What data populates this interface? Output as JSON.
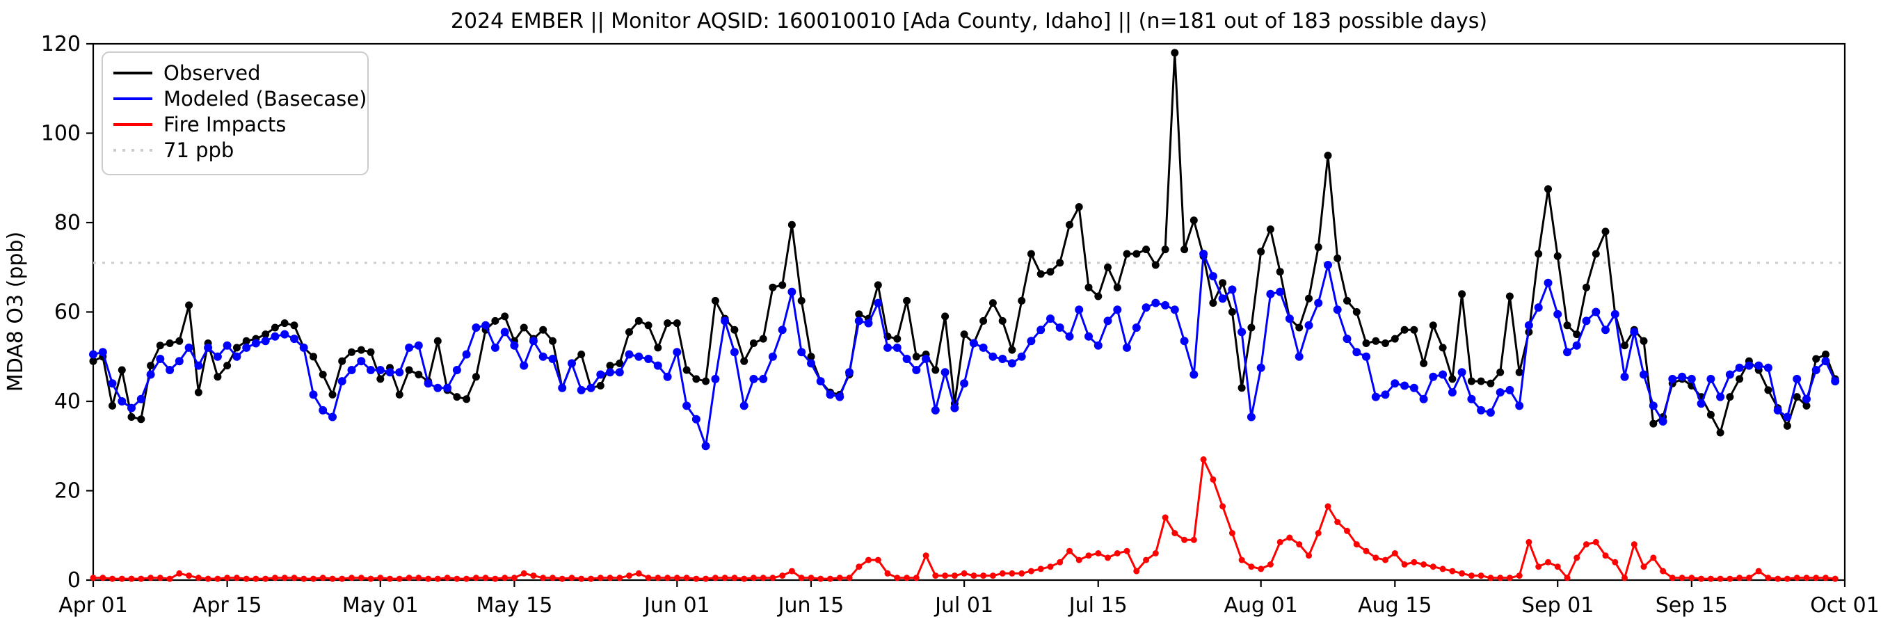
{
  "window": {
    "background": "#ffffff"
  },
  "chart_data": {
    "type": "line",
    "title": "2024 EMBER || Monitor AQSID: 160010010 [Ada County, Idaho] || (n=181 out of 183 possible days)",
    "xlabel": "",
    "ylabel": "MDA8 O3 (ppb)",
    "ylim": [
      0,
      120
    ],
    "y_ticks": [
      0,
      20,
      40,
      60,
      80,
      100,
      120
    ],
    "x": "daily values, 2024-04-01 through 2024-09-30 (183 days)",
    "x_tick_labels": [
      "Apr 01",
      "Apr 15",
      "May 01",
      "May 15",
      "Jun 01",
      "Jun 15",
      "Jul 01",
      "Jul 15",
      "Aug 01",
      "Aug 15",
      "Sep 01",
      "Sep 15",
      "Oct 01"
    ],
    "x_tick_day_index": [
      0,
      14,
      30,
      44,
      61,
      75,
      91,
      105,
      122,
      136,
      153,
      167,
      183
    ],
    "grid": false,
    "legend_position": "upper left",
    "threshold": {
      "label": "71 ppb",
      "value": 71,
      "color": "#cccccc",
      "style": "dotted"
    },
    "series": [
      {
        "name": "Observed",
        "color": "#000000",
        "values": [
          49,
          50,
          39,
          47,
          36.5,
          36,
          48,
          52.5,
          53,
          53.5,
          61.5,
          42,
          53,
          45.5,
          48,
          52,
          53.5,
          54,
          55,
          56.5,
          57.5,
          57,
          52,
          50,
          46,
          41.5,
          49,
          51,
          51.5,
          51,
          45,
          47.5,
          41.5,
          47,
          46,
          44.5,
          53.5,
          42.5,
          41,
          40.5,
          45.5,
          56,
          58,
          59,
          53.5,
          56.5,
          54,
          56,
          53.5,
          43,
          48.5,
          50.5,
          43,
          43.5,
          48,
          48.5,
          55.5,
          58,
          57,
          52,
          57.5,
          57.5,
          47,
          45,
          44.5,
          62.5,
          58.5,
          56,
          49,
          53,
          54,
          65.5,
          66,
          79.5,
          62.5,
          50,
          44.5,
          42,
          41.5,
          46,
          59.5,
          58.5,
          66,
          54.5,
          54,
          62.5,
          50,
          50.5,
          47,
          59,
          39.5,
          55,
          53,
          58,
          62,
          58,
          51.5,
          62.5,
          73,
          68.5,
          69,
          71,
          79.5,
          83.5,
          65.5,
          63.5,
          70,
          65.5,
          73,
          73,
          74,
          70.5,
          74,
          118,
          74,
          80.5,
          72.5,
          62,
          66.5,
          60,
          43,
          56.5,
          73.5,
          78.5,
          69,
          58.5,
          56.5,
          63,
          74.5,
          95,
          72,
          62.5,
          60,
          53,
          53.5,
          53,
          54,
          56,
          56,
          48.5,
          57,
          52,
          45,
          64,
          44.5,
          44.5,
          44,
          46.5,
          63.5,
          46.5,
          55.5,
          73,
          87.5,
          72.5,
          57,
          55,
          65.5,
          73,
          78,
          59.5,
          52.5,
          56,
          53.5,
          35,
          36.5,
          44,
          45,
          43.5,
          41,
          37,
          33,
          41,
          45,
          49,
          47,
          42.5,
          38.5,
          34.5,
          41,
          39,
          49.5,
          50.5,
          45
        ]
      },
      {
        "name": "Modeled (Basecase)",
        "color": "#0000ff",
        "values": [
          50.5,
          51,
          44,
          40,
          38.5,
          40.5,
          46,
          49.5,
          47,
          49,
          52,
          48,
          52,
          50,
          52.5,
          50,
          52,
          53,
          53.5,
          54.5,
          55,
          54,
          52,
          41.5,
          38,
          36.5,
          44.5,
          47,
          49,
          47,
          47,
          46.5,
          46.5,
          52,
          52.5,
          44,
          43,
          43,
          47,
          50.5,
          56.5,
          57,
          52,
          55.5,
          52.5,
          48,
          53.5,
          50,
          49.5,
          43,
          48.5,
          42.5,
          43,
          46,
          46.5,
          46.5,
          50.5,
          50,
          49.5,
          48,
          45.5,
          51,
          39,
          36,
          30,
          45,
          58,
          51,
          39,
          45,
          45,
          50,
          56,
          64.5,
          51,
          48.5,
          44.5,
          41.5,
          41,
          46.5,
          58,
          57.5,
          62,
          52,
          52,
          49.5,
          47,
          49.5,
          38,
          46.5,
          38.5,
          44,
          53,
          52,
          50,
          49.5,
          48.5,
          50,
          53.5,
          56,
          58.5,
          56.5,
          54.5,
          60.5,
          54.5,
          52.5,
          58,
          60.5,
          52,
          56.5,
          61,
          62,
          61.5,
          60.5,
          53.5,
          46,
          73,
          68,
          63,
          65,
          55.5,
          36.5,
          47.5,
          64,
          64.5,
          58.5,
          50,
          57,
          62,
          70.5,
          60.5,
          54,
          51,
          50,
          41,
          41.5,
          44,
          43.5,
          43,
          40.5,
          45.5,
          46,
          42,
          46.5,
          40.5,
          38,
          37.5,
          42,
          42.5,
          39,
          57,
          61,
          66.5,
          59.5,
          51,
          52.5,
          58,
          60,
          56,
          59.5,
          45.5,
          55.5,
          46,
          39,
          35.5,
          45,
          45.5,
          45,
          39.5,
          45,
          41,
          46,
          47.5,
          48,
          48,
          47.5,
          38,
          36.5,
          45,
          40.5,
          47,
          49,
          44.5
        ]
      },
      {
        "name": "Fire Impacts",
        "color": "#ff0000",
        "values": [
          0.5,
          0.5,
          0.3,
          0.3,
          0.3,
          0.3,
          0.5,
          0.5,
          0.3,
          1.5,
          1,
          0.5,
          0.3,
          0.3,
          0.5,
          0.5,
          0.3,
          0.3,
          0.3,
          0.5,
          0.5,
          0.5,
          0.3,
          0.3,
          0.5,
          0.3,
          0.3,
          0.5,
          0.5,
          0.3,
          0.5,
          0.3,
          0.3,
          0.5,
          0.5,
          0.3,
          0.3,
          0.5,
          0.3,
          0.3,
          0.5,
          0.5,
          0.3,
          0.5,
          0.5,
          1.5,
          1,
          0.5,
          0.5,
          0.3,
          0.5,
          0.3,
          0.3,
          0.5,
          0.5,
          0.5,
          1,
          1.5,
          0.5,
          0.5,
          0.5,
          0.5,
          0.5,
          0.3,
          0.3,
          0.5,
          0.5,
          0.5,
          0.3,
          0.5,
          0.5,
          0.5,
          1,
          2,
          0.5,
          0.5,
          0.3,
          0.3,
          0.5,
          0.5,
          3,
          4.5,
          4.5,
          1.5,
          0.5,
          0.5,
          0.5,
          5.5,
          1,
          1,
          1,
          1.5,
          1,
          1,
          1,
          1.5,
          1.5,
          1.5,
          2,
          2.5,
          3,
          4,
          6.5,
          4.5,
          5.5,
          6,
          5,
          6,
          6.5,
          2,
          4.5,
          6,
          14,
          10.5,
          9,
          9,
          27,
          22.5,
          16.5,
          10.5,
          4.5,
          3,
          2.5,
          3.5,
          8.5,
          9.5,
          8,
          5.5,
          10.5,
          16.5,
          13,
          11,
          8,
          6.5,
          5,
          4.5,
          6,
          3.5,
          4,
          3.5,
          3,
          2.5,
          2,
          1.5,
          1,
          1,
          0.5,
          0.5,
          0.5,
          1,
          8.5,
          3,
          4,
          3,
          0.5,
          5,
          8,
          8.5,
          5.5,
          4,
          0.5,
          8,
          3,
          5,
          2,
          0.5,
          0.5,
          0.5,
          0.3,
          0.3,
          0.3,
          0.3,
          0.5,
          0.5,
          2,
          0.5,
          0.3,
          0.3,
          0.5,
          0.5,
          0.5,
          0.5,
          0.3
        ]
      }
    ]
  }
}
